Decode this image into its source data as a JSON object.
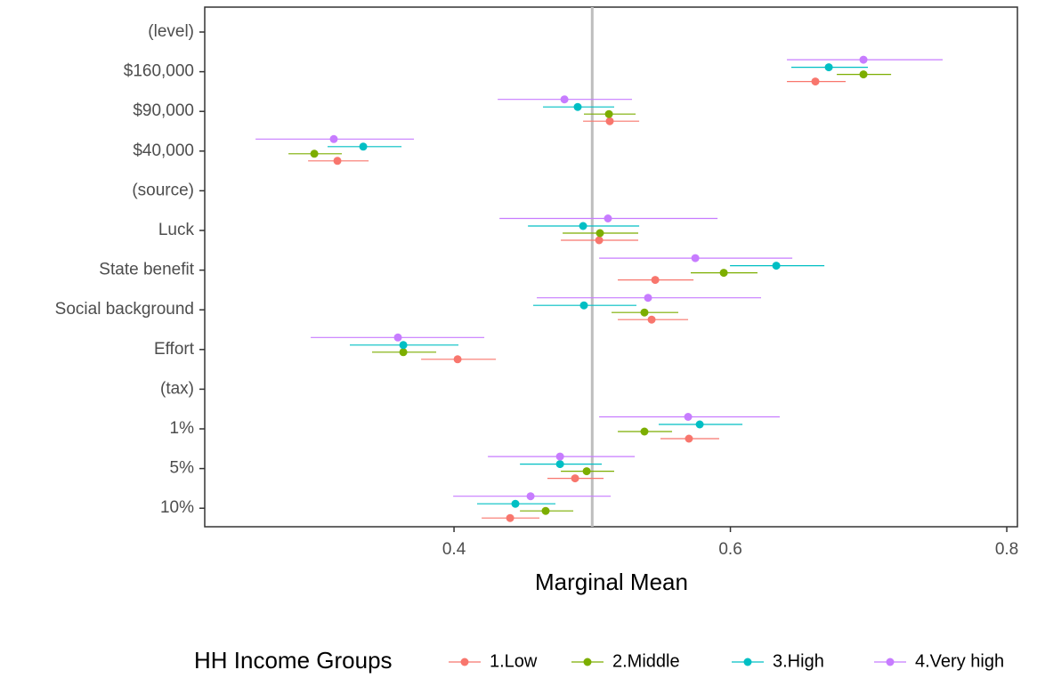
{
  "chart_data": {
    "type": "pointrange",
    "x_label": "Marginal Mean",
    "legend_title": "HH Income Groups",
    "legend_position": "bottom",
    "categories": [
      "(level)",
      "$160,000",
      "$90,000",
      "$40,000",
      "(source)",
      "Luck",
      "State benefit",
      "Social background",
      "Effort",
      "(tax)",
      "1%",
      "5%",
      "10%"
    ],
    "xlim": [
      0.2196,
      0.8077
    ],
    "xticks": [
      0.4,
      0.6,
      0.8
    ],
    "reference_x": 0.5,
    "series": [
      {
        "name": "1.Low",
        "color": "#F8766D",
        "values": [
          null,
          0.6615,
          0.5127,
          0.3156,
          null,
          0.505,
          0.5456,
          0.543,
          0.4026,
          null,
          0.57,
          0.4876,
          0.4406
        ],
        "lower": [
          null,
          0.6409,
          0.4934,
          0.2944,
          null,
          0.4773,
          0.5185,
          0.5185,
          0.3762,
          null,
          0.5494,
          0.4676,
          0.42
        ],
        "upper": [
          null,
          0.6834,
          0.534,
          0.3382,
          null,
          0.5333,
          0.5733,
          0.5694,
          0.4303,
          null,
          0.5919,
          0.5082,
          0.4618
        ]
      },
      {
        "name": "2.Middle",
        "color": "#7CAE00",
        "values": [
          null,
          0.6963,
          0.5121,
          0.2989,
          null,
          0.5056,
          0.5952,
          0.5378,
          0.3633,
          null,
          0.5378,
          0.496,
          0.4663
        ],
        "lower": [
          null,
          0.677,
          0.494,
          0.2802,
          null,
          0.4786,
          0.5713,
          0.514,
          0.3407,
          null,
          0.5185,
          0.4773,
          0.4477
        ],
        "upper": [
          null,
          0.7163,
          0.5314,
          0.3188,
          null,
          0.5333,
          0.6196,
          0.5623,
          0.3871,
          null,
          0.5578,
          0.5159,
          0.4863
        ]
      },
      {
        "name": "3.High",
        "color": "#00BFC4",
        "values": [
          null,
          0.6712,
          0.4895,
          0.3343,
          null,
          0.4934,
          0.6332,
          0.494,
          0.3633,
          null,
          0.5778,
          0.4767,
          0.4444
        ],
        "lower": [
          null,
          0.6441,
          0.4644,
          0.3085,
          null,
          0.4535,
          0.5997,
          0.4573,
          0.3246,
          null,
          0.5481,
          0.4477,
          0.4167
        ],
        "upper": [
          null,
          0.6995,
          0.5159,
          0.362,
          null,
          0.534,
          0.668,
          0.532,
          0.4032,
          null,
          0.6087,
          0.5069,
          0.4734
        ]
      },
      {
        "name": "4.Very high",
        "color": "#C77CFF",
        "values": [
          null,
          0.6963,
          0.4799,
          0.313,
          null,
          0.5114,
          0.5746,
          0.5404,
          0.3594,
          null,
          0.5694,
          0.4767,
          0.4554
        ],
        "lower": [
          null,
          0.6409,
          0.4316,
          0.2564,
          null,
          0.4329,
          0.505,
          0.4599,
          0.2963,
          null,
          0.505,
          0.4245,
          0.3994
        ],
        "upper": [
          null,
          0.7536,
          0.5288,
          0.371,
          null,
          0.5907,
          0.6448,
          0.6222,
          0.4219,
          null,
          0.6357,
          0.5308,
          0.5134
        ]
      }
    ]
  }
}
